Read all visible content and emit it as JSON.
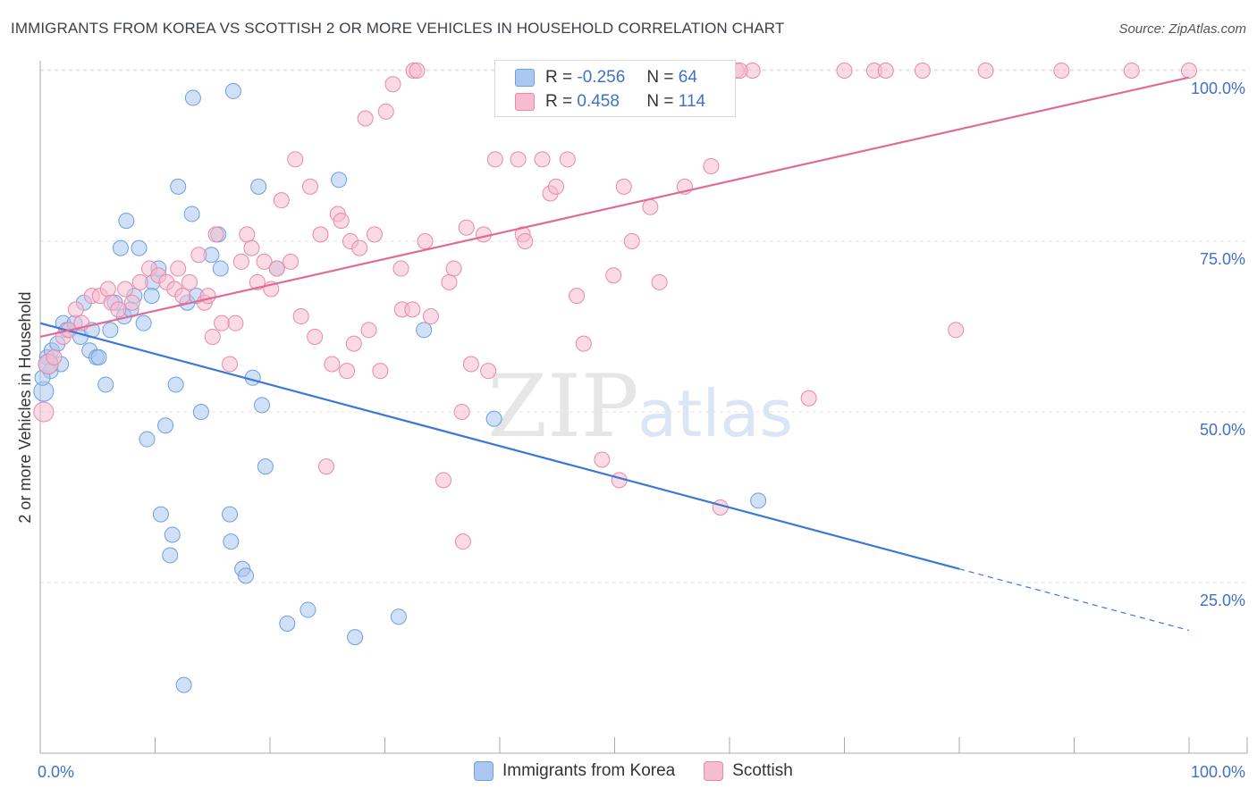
{
  "title": "IMMIGRANTS FROM KOREA VS SCOTTISH 2 OR MORE VEHICLES IN HOUSEHOLD CORRELATION CHART",
  "source": "Source: ZipAtlas.com",
  "watermark": {
    "zip": "ZIP",
    "atlas": "atlas"
  },
  "legend": {
    "rows": [
      {
        "r_label": "R = ",
        "r_value": "-0.256",
        "n_label": "N = ",
        "n_value": "64",
        "color": "#a9c7f0",
        "border": "#6f9fe0"
      },
      {
        "r_label": "R = ",
        "r_value": "0.458",
        "n_label": "N = ",
        "n_value": "114",
        "color": "#f6bcd0",
        "border": "#e889a9"
      }
    ]
  },
  "chart_data": {
    "type": "scatter",
    "title": "IMMIGRANTS FROM KOREA VS SCOTTISH 2 OR MORE VEHICLES IN HOUSEHOLD CORRELATION CHART",
    "xlabel": "",
    "ylabel": "2 or more Vehicles in Household",
    "xlim": [
      0,
      100
    ],
    "ylim": [
      0,
      100
    ],
    "x_tick_labels": [
      "0.0%",
      "100.0%"
    ],
    "y_tick_labels": [
      "25.0%",
      "50.0%",
      "75.0%",
      "100.0%"
    ],
    "y_ticks": [
      25,
      50,
      75,
      100
    ],
    "grid": true,
    "legend_position": "bottom-center",
    "series": [
      {
        "name": "Immigrants from Korea",
        "color": "#a9c7f0",
        "stroke": "#6f9fe0",
        "trend_color": "#3a78d8",
        "trend": {
          "x0": 0,
          "y0": 63,
          "x1": 80,
          "y1": 27,
          "dash_to_x": 100,
          "dash_to_y": 18
        },
        "points": [
          [
            0.3,
            53
          ],
          [
            0.6,
            58
          ],
          [
            0.9,
            56
          ],
          [
            1.0,
            59
          ],
          [
            1.5,
            60
          ],
          [
            1.8,
            57
          ],
          [
            2.0,
            63
          ],
          [
            2.3,
            62
          ],
          [
            3.0,
            63
          ],
          [
            3.5,
            61
          ],
          [
            3.8,
            66
          ],
          [
            4.3,
            59
          ],
          [
            4.5,
            62
          ],
          [
            4.9,
            58
          ],
          [
            5.1,
            58
          ],
          [
            5.7,
            54
          ],
          [
            6.1,
            62
          ],
          [
            6.5,
            66
          ],
          [
            7.0,
            74
          ],
          [
            7.3,
            64
          ],
          [
            7.5,
            78
          ],
          [
            7.9,
            65
          ],
          [
            8.2,
            67
          ],
          [
            8.6,
            74
          ],
          [
            9.0,
            63
          ],
          [
            9.3,
            46
          ],
          [
            9.8,
            69
          ],
          [
            10.3,
            71
          ],
          [
            10.5,
            35
          ],
          [
            10.9,
            48
          ],
          [
            11.3,
            29
          ],
          [
            11.5,
            32
          ],
          [
            11.8,
            54
          ],
          [
            12.0,
            83
          ],
          [
            12.5,
            10
          ],
          [
            12.8,
            66
          ],
          [
            13.2,
            79
          ],
          [
            13.3,
            96
          ],
          [
            13.6,
            67
          ],
          [
            14.0,
            50
          ],
          [
            14.9,
            73
          ],
          [
            15.5,
            76
          ],
          [
            15.7,
            71
          ],
          [
            16.5,
            35
          ],
          [
            16.6,
            31
          ],
          [
            16.8,
            97
          ],
          [
            17.6,
            27
          ],
          [
            17.9,
            26
          ],
          [
            18.5,
            55
          ],
          [
            19.0,
            83
          ],
          [
            19.3,
            51
          ],
          [
            19.6,
            42
          ],
          [
            20.6,
            71
          ],
          [
            21.5,
            19
          ],
          [
            23.3,
            21
          ],
          [
            26.0,
            84
          ],
          [
            27.4,
            17
          ],
          [
            31.2,
            20
          ],
          [
            33.4,
            62
          ],
          [
            39.5,
            49
          ],
          [
            62.5,
            37
          ],
          [
            0.2,
            55
          ],
          [
            0.7,
            57
          ],
          [
            9.7,
            67
          ]
        ]
      },
      {
        "name": "Scottish",
        "color": "#f6bcd0",
        "stroke": "#e889a9",
        "trend_color": "#e06c95",
        "trend": {
          "x0": 0,
          "y0": 61,
          "x1": 100,
          "y1": 99
        },
        "points": [
          [
            0.3,
            50
          ],
          [
            0.7,
            57
          ],
          [
            1.2,
            58
          ],
          [
            2.0,
            61
          ],
          [
            2.5,
            62
          ],
          [
            3.1,
            65
          ],
          [
            3.6,
            63
          ],
          [
            4.5,
            67
          ],
          [
            5.2,
            67
          ],
          [
            5.9,
            68
          ],
          [
            6.2,
            66
          ],
          [
            6.8,
            65
          ],
          [
            7.4,
            68
          ],
          [
            8.0,
            66
          ],
          [
            8.7,
            69
          ],
          [
            9.5,
            71
          ],
          [
            10.3,
            70
          ],
          [
            11.0,
            69
          ],
          [
            11.7,
            68
          ],
          [
            12.0,
            71
          ],
          [
            12.4,
            67
          ],
          [
            13.0,
            69
          ],
          [
            13.8,
            73
          ],
          [
            14.3,
            66
          ],
          [
            14.6,
            67
          ],
          [
            15.0,
            61
          ],
          [
            15.3,
            76
          ],
          [
            15.8,
            63
          ],
          [
            16.5,
            57
          ],
          [
            17.0,
            63
          ],
          [
            17.5,
            72
          ],
          [
            18.0,
            76
          ],
          [
            18.4,
            74
          ],
          [
            18.9,
            69
          ],
          [
            19.5,
            72
          ],
          [
            20.1,
            68
          ],
          [
            20.6,
            71
          ],
          [
            21.0,
            81
          ],
          [
            21.8,
            72
          ],
          [
            22.2,
            87
          ],
          [
            22.7,
            64
          ],
          [
            23.5,
            83
          ],
          [
            23.9,
            61
          ],
          [
            24.4,
            76
          ],
          [
            24.9,
            42
          ],
          [
            25.4,
            57
          ],
          [
            25.9,
            79
          ],
          [
            26.2,
            78
          ],
          [
            26.7,
            56
          ],
          [
            27.0,
            75
          ],
          [
            27.3,
            60
          ],
          [
            27.8,
            74
          ],
          [
            28.3,
            93
          ],
          [
            28.6,
            62
          ],
          [
            29.1,
            76
          ],
          [
            29.6,
            56
          ],
          [
            30.1,
            94
          ],
          [
            30.7,
            98
          ],
          [
            31.4,
            71
          ],
          [
            31.5,
            65
          ],
          [
            32.4,
            65
          ],
          [
            32.5,
            100
          ],
          [
            32.8,
            100
          ],
          [
            33.5,
            75
          ],
          [
            34.0,
            64
          ],
          [
            35.1,
            40
          ],
          [
            35.6,
            69
          ],
          [
            36.0,
            71
          ],
          [
            36.8,
            31
          ],
          [
            37.1,
            77
          ],
          [
            37.5,
            57
          ],
          [
            38.6,
            76
          ],
          [
            39.0,
            56
          ],
          [
            39.6,
            87
          ],
          [
            40.6,
            95
          ],
          [
            41.6,
            87
          ],
          [
            42.0,
            76
          ],
          [
            42.2,
            75
          ],
          [
            43.7,
            87
          ],
          [
            44.4,
            82
          ],
          [
            44.9,
            83
          ],
          [
            45.2,
            100
          ],
          [
            45.3,
            100
          ],
          [
            45.9,
            87
          ],
          [
            46.7,
            67
          ],
          [
            47.3,
            60
          ],
          [
            47.4,
            100
          ],
          [
            47.9,
            100
          ],
          [
            48.9,
            43
          ],
          [
            49.9,
            70
          ],
          [
            50.4,
            40
          ],
          [
            50.8,
            83
          ],
          [
            51.4,
            96
          ],
          [
            53.1,
            80
          ],
          [
            53.9,
            69
          ],
          [
            56.1,
            83
          ],
          [
            58.4,
            86
          ],
          [
            60.6,
            100
          ],
          [
            62.0,
            100
          ],
          [
            66.9,
            52
          ],
          [
            70.0,
            100
          ],
          [
            72.6,
            100
          ],
          [
            73.6,
            100
          ],
          [
            76.8,
            100
          ],
          [
            79.7,
            62
          ],
          [
            82.3,
            100
          ],
          [
            88.9,
            100
          ],
          [
            95.0,
            100
          ],
          [
            100.0,
            100
          ],
          [
            59.2,
            36
          ],
          [
            51.5,
            75
          ],
          [
            52.8,
            100
          ],
          [
            60.9,
            100
          ],
          [
            36.7,
            50
          ]
        ]
      }
    ]
  }
}
